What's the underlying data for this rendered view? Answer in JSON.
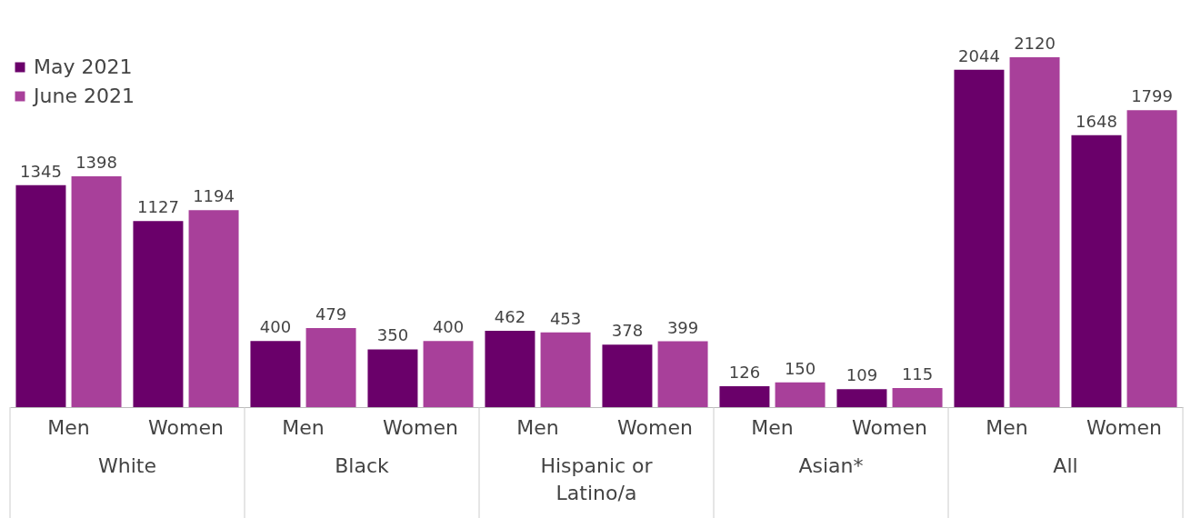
{
  "chart_data": {
    "type": "bar",
    "categories": [
      "Men",
      "Women",
      "Men",
      "Women",
      "Men",
      "Women",
      "Men",
      "Women",
      "Men",
      "Women"
    ],
    "series": [
      {
        "name": "May 2021",
        "color": "#6a006a",
        "values": [
          1345,
          1127,
          400,
          350,
          462,
          378,
          126,
          109,
          2044,
          1648
        ]
      },
      {
        "name": "June 2021",
        "color": "#a8409a",
        "values": [
          1398,
          1194,
          479,
          400,
          453,
          399,
          150,
          115,
          2120,
          1799
        ]
      }
    ],
    "annotations": [
      "White",
      "Black",
      "Hispanic or\nLatino/a",
      "Asian*",
      "All"
    ],
    "data_labels": true,
    "legend": "top left",
    "grid": false
  }
}
